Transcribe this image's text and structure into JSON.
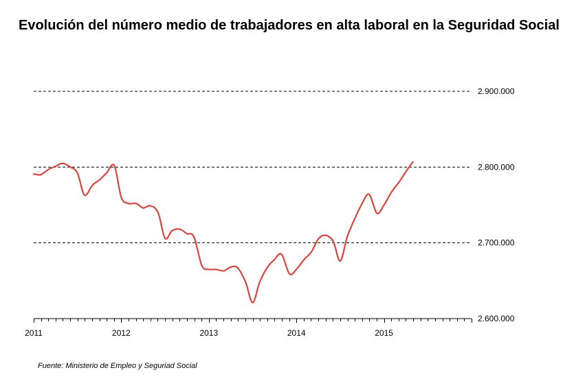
{
  "title": "Evolución del número medio de trabajadores en alta laboral en la Seguridad Social",
  "source": "Fuente: Ministerio de Empleo y Seguriad Social",
  "chart_data": {
    "type": "line",
    "title": "Evolución del número medio de trabajadores en alta laboral en la Seguridad Social",
    "xlabel": "",
    "ylabel": "",
    "x_tick_labels": [
      "2011",
      "2012",
      "2013",
      "2014",
      "2015"
    ],
    "y_tick_labels": [
      "2.900.000",
      "2.800.000",
      "2.700.000",
      "2.600.000"
    ],
    "y_ticks": [
      2900000,
      2800000,
      2700000,
      2600000
    ],
    "xlim": [
      2011.0,
      2016.0
    ],
    "ylim": [
      2600000,
      2900000
    ],
    "y_axis_side": "right",
    "grid": "horizontal-dashed",
    "line_color": "#d9433a",
    "series": [
      {
        "x": [
          2011.0,
          2011.08,
          2011.17,
          2011.25,
          2011.33,
          2011.42,
          2011.5,
          2011.58,
          2011.67,
          2011.75,
          2011.83,
          2011.92,
          2012.0,
          2012.08,
          2012.17,
          2012.25,
          2012.33,
          2012.42,
          2012.5,
          2012.58,
          2012.67,
          2012.75,
          2012.83,
          2012.92,
          2013.0,
          2013.08,
          2013.17,
          2013.25,
          2013.33,
          2013.42,
          2013.5,
          2013.58,
          2013.67,
          2013.75,
          2013.83,
          2013.92,
          2014.0,
          2014.08,
          2014.17,
          2014.25,
          2014.33,
          2014.42,
          2014.5,
          2014.58,
          2014.67,
          2014.75,
          2014.83,
          2014.92,
          2015.0,
          2015.08,
          2015.17,
          2015.25,
          2015.33
        ],
        "values": [
          2791000,
          2790000,
          2797000,
          2801000,
          2805000,
          2800000,
          2792000,
          2763000,
          2776000,
          2783000,
          2792000,
          2802000,
          2760000,
          2752000,
          2752000,
          2746000,
          2749000,
          2740000,
          2706000,
          2716000,
          2718000,
          2712000,
          2708000,
          2670000,
          2665000,
          2665000,
          2663000,
          2668000,
          2667000,
          2648000,
          2621000,
          2648000,
          2668000,
          2678000,
          2685000,
          2659000,
          2665000,
          2677000,
          2688000,
          2705000,
          2710000,
          2702000,
          2676000,
          2708000,
          2733000,
          2752000,
          2764000,
          2739000,
          2750000,
          2766000,
          2780000,
          2794000,
          2807000
        ]
      }
    ]
  }
}
